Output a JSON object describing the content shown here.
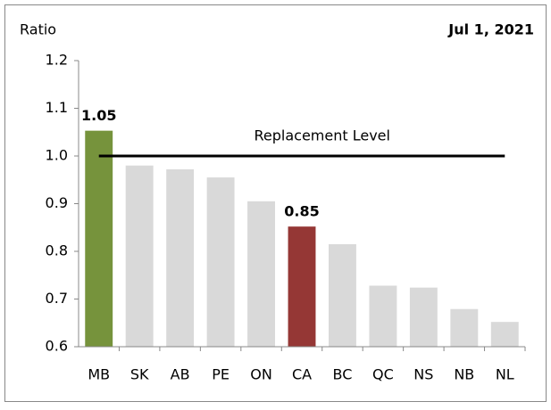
{
  "chart_data": {
    "type": "bar",
    "y_label": "Ratio",
    "date": "Jul 1, 2021",
    "categories": [
      "MB",
      "SK",
      "AB",
      "PE",
      "ON",
      "CA",
      "BC",
      "QC",
      "NS",
      "NB",
      "NL"
    ],
    "values": [
      1.053,
      0.98,
      0.972,
      0.955,
      0.905,
      0.852,
      0.815,
      0.728,
      0.724,
      0.679,
      0.652
    ],
    "value_labels": [
      "1.05",
      null,
      null,
      null,
      null,
      "0.85",
      null,
      null,
      null,
      null,
      null
    ],
    "colors": [
      "#76933c",
      "#d9d9d9",
      "#d9d9d9",
      "#d9d9d9",
      "#d9d9d9",
      "#953735",
      "#d9d9d9",
      "#d9d9d9",
      "#d9d9d9",
      "#d9d9d9",
      "#d9d9d9"
    ],
    "ylim": [
      0.6,
      1.2
    ],
    "yticks": [
      0.6,
      0.7,
      0.8,
      0.9,
      {
        "value": 1,
        "label": "1.0"
      },
      1.1,
      1.2
    ],
    "reference_line": {
      "value": 1,
      "label": "Replacement Level",
      "color": "#000000"
    }
  }
}
